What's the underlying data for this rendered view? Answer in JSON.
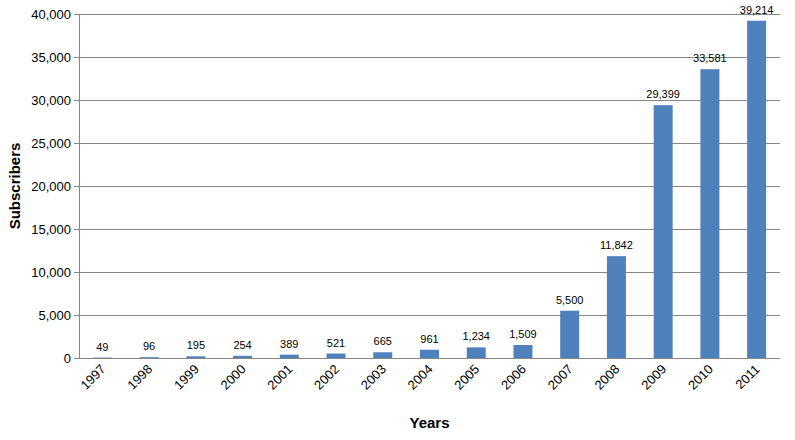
{
  "chart_data": {
    "type": "bar",
    "x_label": "Years",
    "y_label": "Subscribers",
    "categories": [
      "1997",
      "1998",
      "1999",
      "2000",
      "2001",
      "2002",
      "2003",
      "2004",
      "2005",
      "2006",
      "2007",
      "2008",
      "2009",
      "2010",
      "2011"
    ],
    "values": [
      49,
      96,
      195,
      254,
      389,
      521,
      665,
      961,
      1234,
      1509,
      5500,
      11842,
      29399,
      33581,
      39214
    ],
    "value_labels": [
      "49",
      "96",
      "195",
      "254",
      "389",
      "521",
      "665",
      "961",
      "1,234",
      "1,509",
      "5,500",
      "11,842",
      "29,399",
      "33,581",
      "39,214"
    ],
    "color": "#4f81bd",
    "ylim": [
      0,
      40000
    ],
    "yticks": [
      0,
      {
        "value": 5000,
        "label": "5,000"
      },
      {
        "value": 10000,
        "label": "10,000"
      },
      {
        "value": 15000,
        "label": "15,000"
      },
      {
        "value": 20000,
        "label": "20,000"
      },
      {
        "value": 25000,
        "label": "25,000"
      },
      {
        "value": 30000,
        "label": "30,000"
      },
      {
        "value": 35000,
        "label": "35,000"
      },
      {
        "value": 40000,
        "label": "40,000"
      }
    ],
    "grid": true,
    "data_labels": true
  }
}
